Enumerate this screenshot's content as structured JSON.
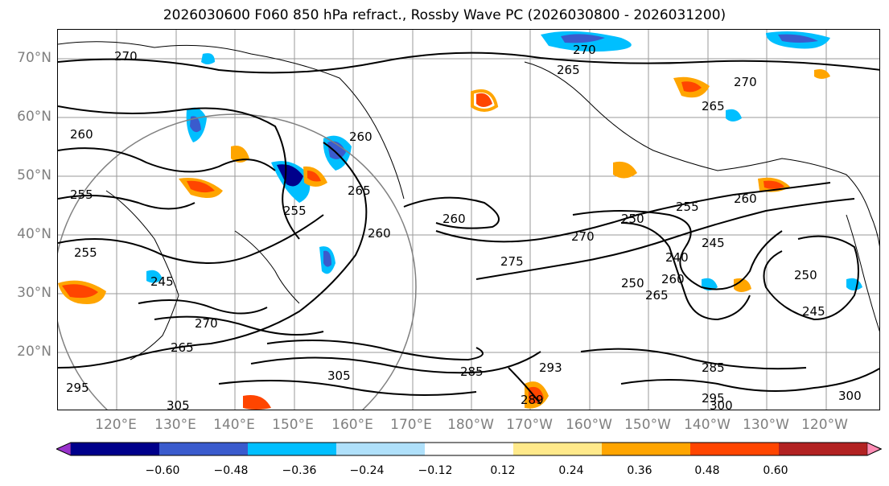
{
  "title": "2026030600 F060 850 hPa refract., Rossby Wave PC (2026030800 - 2026031200)",
  "lat_labels": [
    "70°N",
    "60°N",
    "50°N",
    "40°N",
    "30°N",
    "20°N"
  ],
  "lon_labels": [
    "120°E",
    "130°E",
    "140°E",
    "150°E",
    "160°E",
    "170°E",
    "180°W",
    "170°W",
    "160°W",
    "150°W",
    "140°W",
    "130°W",
    "120°W"
  ],
  "colorbar": {
    "tick_labels": [
      "−0.60",
      "−0.48",
      "−0.36",
      "−0.24",
      "−0.12",
      "0.12",
      "0.24",
      "0.36",
      "0.48",
      "0.60"
    ],
    "colors": [
      "#9932cc",
      "#00008b",
      "#3a5bcd",
      "#00bfff",
      "#afe0fa",
      "#ffffff",
      "#ffe98a",
      "#ffa500",
      "#ff4500",
      "#b22222",
      "#ff8cb4"
    ]
  },
  "contour_labels": [
    "270",
    "270",
    "265",
    "270",
    "265",
    "260",
    "260",
    "255",
    "255",
    "260",
    "265",
    "245",
    "260",
    "275",
    "270",
    "255",
    "260",
    "250",
    "245",
    "240",
    "250",
    "245",
    "265",
    "270",
    "285",
    "295",
    "300",
    "300",
    "305",
    "305",
    "293",
    "289",
    "285",
    "295",
    "265",
    "260",
    "250",
    "255"
  ]
}
